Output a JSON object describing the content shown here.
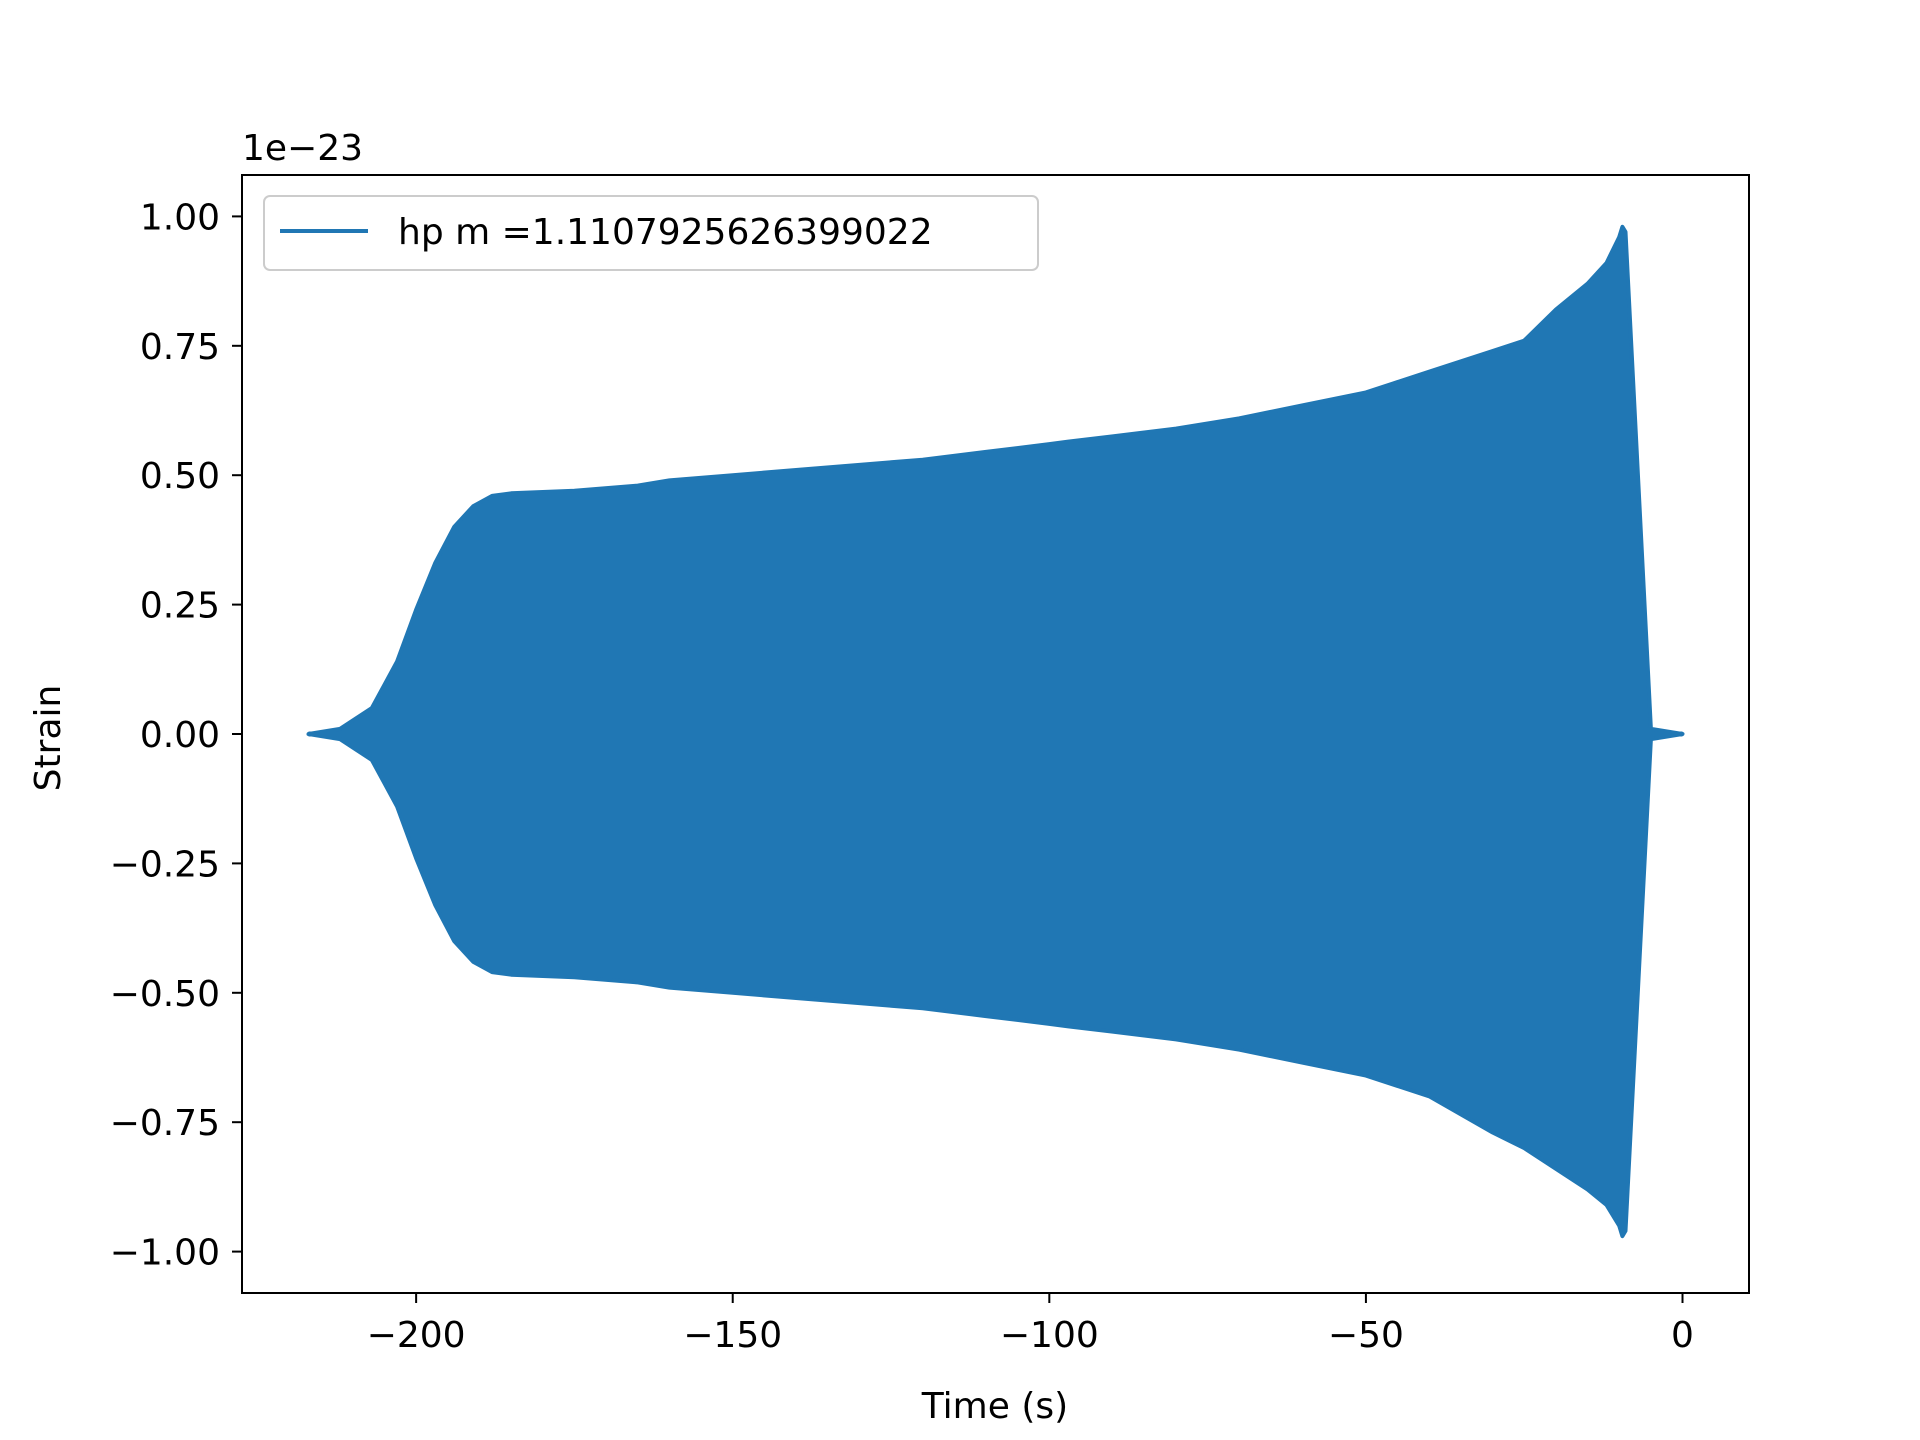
{
  "chart_data": {
    "type": "line",
    "title": "",
    "xlabel": "Time (s)",
    "ylabel": "Strain",
    "y_offset_text": "1e−23",
    "y_scale_exponent": -23,
    "xlim": [
      -227.5,
      10.5
    ],
    "ylim": [
      -1.08,
      1.08
    ],
    "xticks": [
      -200,
      -150,
      -100,
      -50,
      0
    ],
    "xtick_labels": [
      "−200",
      "−150",
      "−100",
      "−50",
      "0"
    ],
    "yticks": [
      1.0,
      0.75,
      0.5,
      0.25,
      0.0,
      -0.25,
      -0.5,
      -0.75,
      -1.0
    ],
    "ytick_labels": [
      "1.00",
      "0.75",
      "0.50",
      "0.25",
      "0.00",
      "−0.25",
      "−0.50",
      "−0.75",
      "−1.00"
    ],
    "grid": false,
    "legend": {
      "position": "top-left",
      "entries": [
        "hp m =1.1107925626399022"
      ]
    },
    "series": [
      {
        "name": "hp m =1.1107925626399022",
        "color": "#2077b4",
        "style": "dense oscillation filling an envelope",
        "envelope_time": [
          -217,
          -212,
          -207,
          -203,
          -200,
          -197,
          -194,
          -191,
          -188,
          -185,
          -175,
          -165,
          -160,
          -150,
          -140,
          -130,
          -125,
          -120,
          -110,
          -100,
          -97,
          -90,
          -80,
          -70,
          -60,
          -50,
          -40,
          -30,
          -25,
          -20,
          -15,
          -12,
          -10,
          -9.5,
          -9,
          -5,
          0
        ],
        "envelope_upper": [
          0.0,
          0.01,
          0.05,
          0.14,
          0.24,
          0.33,
          0.4,
          0.44,
          0.46,
          0.465,
          0.47,
          0.48,
          0.49,
          0.5,
          0.51,
          0.52,
          0.525,
          0.53,
          0.545,
          0.56,
          0.565,
          0.575,
          0.59,
          0.61,
          0.635,
          0.66,
          0.7,
          0.74,
          0.76,
          0.82,
          0.87,
          0.91,
          0.96,
          0.98,
          0.97,
          0.01,
          0.0
        ],
        "envelope_lower": [
          0.0,
          -0.01,
          -0.05,
          -0.14,
          -0.24,
          -0.33,
          -0.4,
          -0.44,
          -0.46,
          -0.465,
          -0.47,
          -0.48,
          -0.49,
          -0.5,
          -0.51,
          -0.52,
          -0.525,
          -0.53,
          -0.545,
          -0.56,
          -0.565,
          -0.575,
          -0.59,
          -0.61,
          -0.635,
          -0.66,
          -0.7,
          -0.77,
          -0.8,
          -0.84,
          -0.88,
          -0.91,
          -0.95,
          -0.97,
          -0.96,
          -0.01,
          0.0
        ]
      }
    ]
  }
}
